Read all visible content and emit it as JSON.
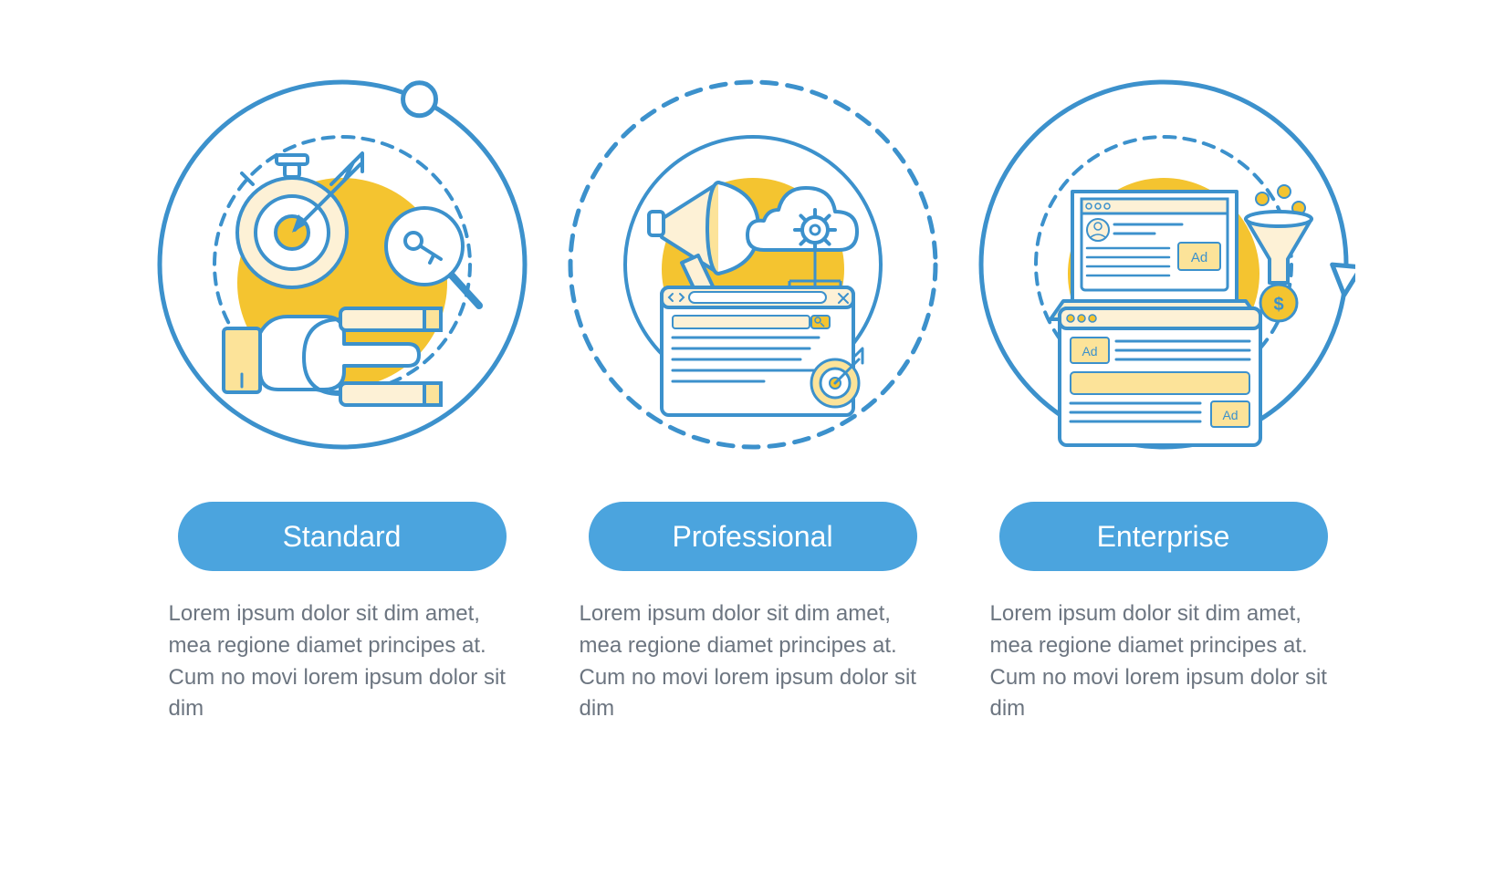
{
  "colors": {
    "stroke": "#3c91cc",
    "accent_fill": "#f4c430",
    "accent_light": "#fce399",
    "pill_bg": "#4ba4de",
    "pill_text": "#ffffff",
    "desc_text": "#6c7580",
    "background": "#ffffff",
    "cream": "#fdf1d6"
  },
  "style": {
    "outer_stroke_width": 5,
    "icon_stroke_width": 4,
    "dash": "16 12",
    "dash_inner": "12 10",
    "circle_radius_outer": 200,
    "circle_radius_inner": 140,
    "accent_radius": 115,
    "pill_fontsize": 32,
    "desc_fontsize": 24
  },
  "tiers": [
    {
      "key": "standard",
      "title": "Standard",
      "outer_dashed": false,
      "inner_dashed": true,
      "icon": "target-magnifier-hand",
      "desc": "Lorem ipsum dolor sit dim amet, mea regione diamet principes at. Cum no movi lorem ipsum dolor sit dim"
    },
    {
      "key": "professional",
      "title": "Professional",
      "outer_dashed": true,
      "inner_dashed": false,
      "icon": "megaphone-cloud-browser",
      "desc": "Lorem ipsum dolor sit dim amet, mea regione diamet principes at. Cum no movi lorem ipsum dolor sit dim"
    },
    {
      "key": "enterprise",
      "title": "Enterprise",
      "outer_dashed": false,
      "inner_dashed": true,
      "icon": "laptop-funnel-ads",
      "desc": "Lorem ipsum dolor sit dim amet, mea regione diamet principes at. Cum no movi lorem ipsum dolor sit dim"
    }
  ],
  "decorations": {
    "start_dot": {
      "on": "standard",
      "angle_deg": -65
    },
    "end_arrow": {
      "on": "enterprise",
      "angle_deg": 5
    }
  }
}
